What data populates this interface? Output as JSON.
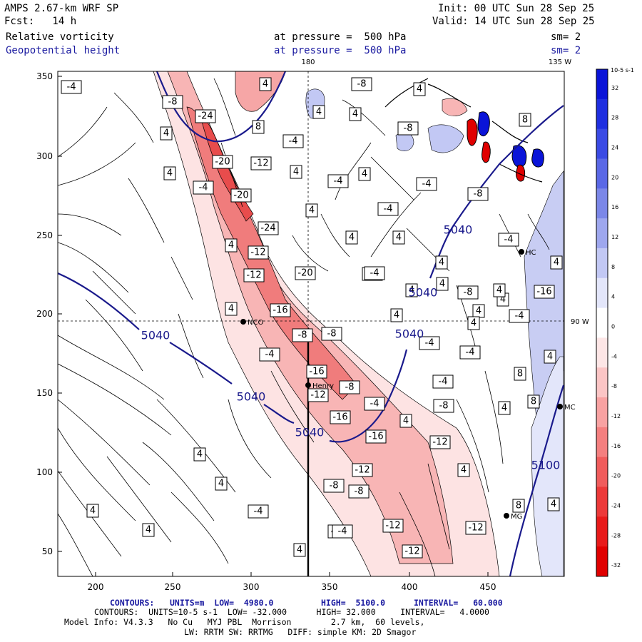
{
  "header": {
    "model": "AMPS 2.67-km WRF SP",
    "init": "Init: 00 UTC Sun 28 Sep 25",
    "fcst": "Fcst:   14 h",
    "valid": "Valid: 14 UTC Sun 28 Sep 25",
    "field1": "Relative vorticity",
    "field1_level": "at pressure =  500 hPa",
    "field1_sm": "sm= 2",
    "field2": "Geopotential height",
    "field2_level": "at pressure =  500 hPa",
    "field2_sm": "sm= 2"
  },
  "map": {
    "top_labels": {
      "lon180": "180",
      "lon135": "135 W"
    },
    "right_label": "90 W",
    "x_ticks": [
      "200",
      "250",
      "300",
      "350",
      "400",
      "450"
    ],
    "y_ticks": [
      "350",
      "300",
      "250",
      "200",
      "150",
      "100",
      "50"
    ],
    "stations": [
      {
        "id": "nco",
        "label": "NCO"
      },
      {
        "id": "henry",
        "label": "Henry"
      },
      {
        "id": "mc",
        "label": "MC"
      },
      {
        "id": "hc",
        "label": "HC"
      },
      {
        "id": "mg",
        "label": "MG"
      }
    ],
    "height_contours": [
      {
        "label": "5040"
      },
      {
        "label": "5040"
      },
      {
        "label": "5040"
      },
      {
        "label": "5040"
      },
      {
        "label": "5040"
      },
      {
        "label": "5040"
      },
      {
        "label": "5100"
      }
    ],
    "vort_labels": [
      "-4",
      "4",
      "-8",
      "4",
      "-8",
      "-24",
      "4",
      "8",
      "-8",
      "-4",
      "4",
      "4",
      "-20",
      "-12",
      "8",
      "4",
      "4",
      "4",
      "-4",
      "-4",
      "-4",
      "-20",
      "4",
      "-4",
      "4",
      "4",
      "-24",
      "-8",
      "-12",
      "4",
      "-4",
      "4",
      "-12",
      "-20",
      "-4",
      "4",
      "-4",
      "4",
      "-8",
      "4",
      "-16",
      "4",
      "4",
      "-16",
      "-8",
      "-8",
      "-4",
      "4",
      "-4",
      "-16",
      "-8",
      "4",
      "8",
      "-4",
      "-12",
      "-8",
      "4",
      "-4",
      "-4",
      "4",
      "8",
      "4",
      "-4",
      "4",
      "-16",
      "4",
      "-16",
      "-12",
      "4",
      "4",
      "-12",
      "-8",
      "4",
      "-8",
      "8",
      "4",
      "4",
      "-4",
      "-12",
      "4",
      "4",
      "-4",
      "-12",
      "4",
      "-12"
    ]
  },
  "colorbar": {
    "unit": "10-5 s-1",
    "ticks": [
      "32",
      "28",
      "24",
      "20",
      "16",
      "12",
      "8",
      "4",
      "0",
      "-4",
      "-8",
      "-12",
      "-16",
      "-20",
      "-24",
      "-28",
      "-32"
    ],
    "colors": [
      "#0a14d8",
      "#1f2fe0",
      "#3a4ae4",
      "#5a68e6",
      "#7b87e8",
      "#9ea7ee",
      "#c2c8f4",
      "#e3e6fa",
      "#ffffff",
      "#fde6e6",
      "#fbc5c5",
      "#f8a2a2",
      "#f47f7f",
      "#f05c5c",
      "#ec3939",
      "#e81a1a",
      "#e00000"
    ]
  },
  "footer": {
    "line1_label": "CONTOURS:",
    "line1_units": "UNITS=m  LOW=  4980.0",
    "line1_high": "HIGH=  5100.0",
    "line1_interval": "INTERVAL=   60.000",
    "line2": "CONTOURS:  UNITS=10-5 s-1  LOW= -32.000      HIGH= 32.000     INTERVAL=   4.0000",
    "line3": "Model Info: V4.3.3   No Cu   MYJ PBL  Morrison        2.7 km,  60 levels,",
    "line4": "LW: RRTM SW: RRTMG   DIFF: simple KM: 2D Smagor"
  }
}
